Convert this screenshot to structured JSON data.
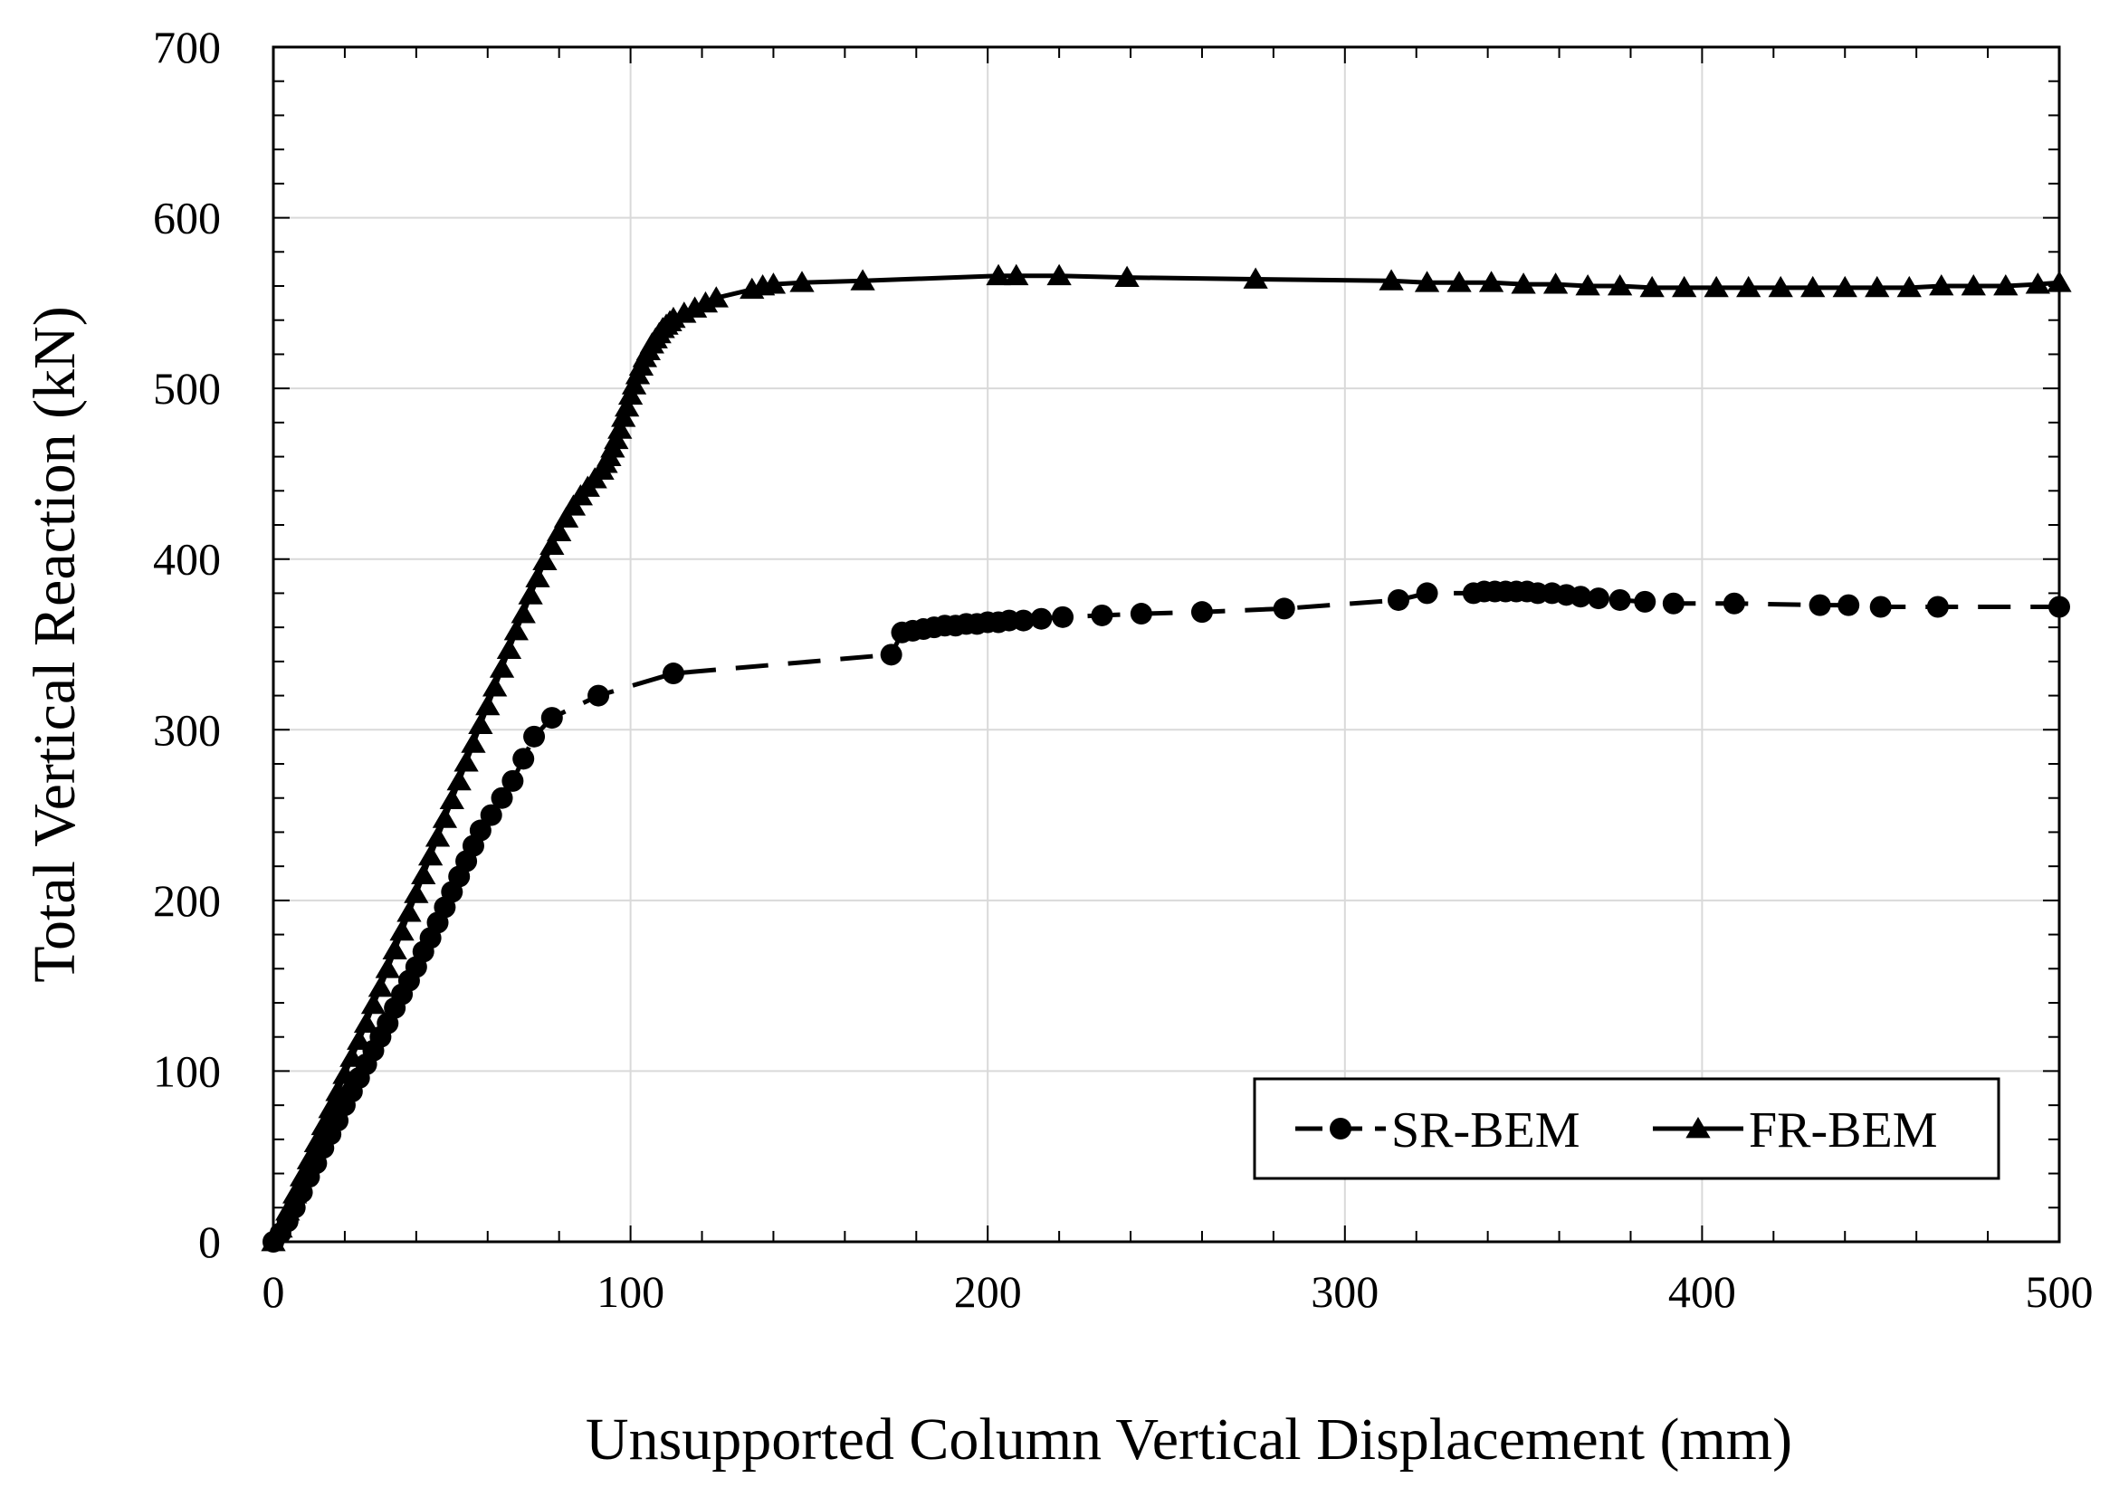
{
  "chart_data": {
    "type": "line",
    "title": "",
    "xlabel": "Unsupported Column Vertical Displacement (mm)",
    "ylabel": "Total Vertical Reaction (kN)",
    "xlim": [
      0,
      500
    ],
    "ylim": [
      0,
      700
    ],
    "x_ticks": [
      "0",
      "100",
      "200",
      "300",
      "400",
      "500"
    ],
    "y_ticks": [
      "0",
      "100",
      "200",
      "300",
      "400",
      "500",
      "600",
      "700"
    ],
    "grid": true,
    "legend_position": "bottom-right",
    "series": [
      {
        "name": "SR-BEM",
        "line_style": "dashed",
        "marker": "circle",
        "color": "#000000",
        "x": [
          0,
          2,
          4,
          6,
          8,
          10,
          12,
          14,
          16,
          18,
          20,
          22,
          24,
          26,
          28,
          30,
          32,
          34,
          36,
          38,
          40,
          42,
          44,
          46,
          48,
          50,
          52,
          54,
          56,
          58,
          61,
          64,
          67,
          70,
          73,
          78,
          91,
          112,
          173,
          176,
          179,
          182,
          185,
          188,
          191,
          194,
          197,
          200,
          203,
          206,
          210,
          215,
          221,
          232,
          243,
          260,
          283,
          315,
          323,
          336,
          339,
          342,
          345,
          348,
          351,
          354,
          358,
          362,
          366,
          371,
          377,
          384,
          392,
          409,
          433,
          441,
          450,
          466,
          500
        ],
        "y": [
          0,
          5,
          12,
          20,
          29,
          38,
          46,
          55,
          63,
          71,
          80,
          88,
          96,
          104,
          112,
          120,
          128,
          137,
          145,
          153,
          161,
          170,
          178,
          187,
          196,
          205,
          214,
          223,
          232,
          241,
          250,
          260,
          270,
          283,
          296,
          307,
          320,
          333,
          344,
          357,
          358,
          359,
          360,
          361,
          361,
          362,
          362,
          363,
          363,
          364,
          364,
          365,
          366,
          367,
          368,
          369,
          371,
          376,
          380,
          380,
          381,
          381,
          381,
          381,
          381,
          380,
          380,
          379,
          378,
          377,
          376,
          375,
          374,
          374,
          373,
          373,
          372,
          372,
          372
        ]
      },
      {
        "name": "FR-BEM",
        "line_style": "solid",
        "marker": "triangle",
        "color": "#000000",
        "x": [
          0,
          2,
          4,
          6,
          8,
          10,
          12,
          14,
          16,
          18,
          20,
          22,
          24,
          26,
          28,
          30,
          32,
          34,
          36,
          38,
          40,
          42,
          44,
          46,
          48,
          50,
          52,
          54,
          56,
          58,
          60,
          62,
          64,
          66,
          68,
          70,
          72,
          74,
          76,
          78,
          80,
          82,
          84,
          86,
          88,
          90,
          92,
          93,
          94,
          95,
          96,
          97,
          98,
          99,
          100,
          101,
          102,
          103,
          104,
          105,
          106,
          107,
          108,
          109,
          110,
          111,
          112,
          115,
          118,
          121,
          124,
          134,
          137,
          140,
          148,
          165,
          203,
          208,
          220,
          239,
          275,
          313,
          323,
          332,
          341,
          350,
          359,
          368,
          377,
          386,
          395,
          404,
          413,
          422,
          431,
          440,
          449,
          458,
          467,
          476,
          485,
          494,
          500
        ],
        "y": [
          0,
          8,
          18,
          28,
          38,
          48,
          58,
          68,
          78,
          88,
          98,
          108,
          118,
          128,
          139,
          149,
          160,
          171,
          182,
          193,
          204,
          215,
          226,
          237,
          248,
          259,
          270,
          281,
          292,
          303,
          314,
          325,
          336,
          347,
          358,
          368,
          379,
          389,
          399,
          408,
          416,
          424,
          431,
          437,
          442,
          447,
          452,
          456,
          460,
          465,
          470,
          476,
          483,
          489,
          496,
          502,
          508,
          513,
          518,
          522,
          526,
          529,
          532,
          535,
          537,
          539,
          541,
          544,
          547,
          550,
          553,
          558,
          560,
          561,
          562,
          563,
          566,
          566,
          566,
          565,
          564,
          563,
          562,
          562,
          562,
          561,
          561,
          560,
          560,
          559,
          559,
          559,
          559,
          559,
          559,
          559,
          559,
          559,
          560,
          560,
          560,
          561,
          562
        ]
      }
    ]
  }
}
